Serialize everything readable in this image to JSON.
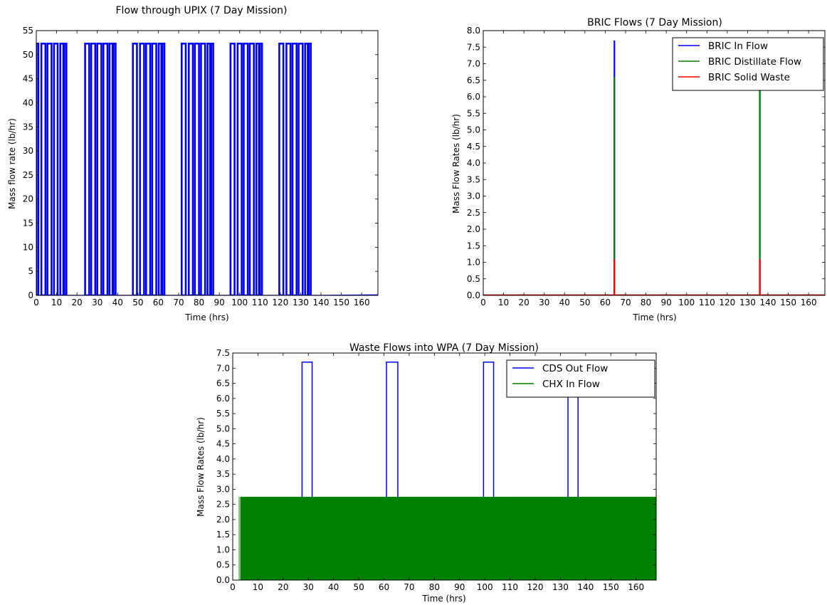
{
  "chart_data": [
    {
      "id": "upix",
      "type": "line",
      "title": "Flow through UPIX (7 Day Mission)",
      "xlabel": "Time (hrs)",
      "ylabel": "Mass flow rate (lb/hr)",
      "xlim": [
        0,
        168
      ],
      "ylim": [
        0,
        55
      ],
      "xticks": [
        0,
        10,
        20,
        30,
        40,
        50,
        60,
        70,
        80,
        90,
        100,
        110,
        120,
        130,
        140,
        150,
        160
      ],
      "yticks": [
        0,
        5,
        10,
        15,
        20,
        25,
        30,
        35,
        40,
        45,
        50,
        55
      ],
      "tick_format": "int",
      "grid": false,
      "legend": null,
      "series": [
        {
          "color": "#0000ff",
          "pulse_height": 52.3,
          "pulses": [
            [
              0,
              1
            ],
            [
              2.5,
              4.5
            ],
            [
              5.5,
              7.5
            ],
            [
              8.7,
              10.5
            ],
            [
              11.8,
              13.3
            ],
            [
              13.8,
              14.8
            ],
            [
              24,
              26
            ],
            [
              27,
              29
            ],
            [
              30,
              32
            ],
            [
              33,
              35
            ],
            [
              36,
              37.5
            ],
            [
              38,
              39
            ],
            [
              47.5,
              49.5
            ],
            [
              51,
              53
            ],
            [
              54,
              56
            ],
            [
              57,
              59
            ],
            [
              60.2,
              61.5
            ],
            [
              62,
              63
            ],
            [
              71.5,
              73.5
            ],
            [
              75,
              77
            ],
            [
              78,
              80
            ],
            [
              81,
              83
            ],
            [
              84.2,
              85.5
            ],
            [
              86,
              87
            ],
            [
              95.5,
              97.5
            ],
            [
              99,
              101
            ],
            [
              102,
              104
            ],
            [
              105,
              107
            ],
            [
              108.2,
              109.5
            ],
            [
              110,
              111
            ],
            [
              119.5,
              121.5
            ],
            [
              123,
              125
            ],
            [
              126,
              128
            ],
            [
              129,
              131
            ],
            [
              132.2,
              133.5
            ],
            [
              134,
              135
            ]
          ],
          "baseline": [
            [
              0,
              0
            ],
            [
              140,
              0
            ],
            [
              168,
              0.1
            ]
          ]
        }
      ]
    },
    {
      "id": "bric",
      "type": "line",
      "title": "BRIC Flows (7 Day Mission)",
      "xlabel": "Time (hrs)",
      "ylabel": "Mass Flow Rates (lb/hr)",
      "xlim": [
        0,
        168
      ],
      "ylim": [
        0,
        8.0
      ],
      "xticks": [
        0,
        10,
        20,
        30,
        40,
        50,
        60,
        70,
        80,
        90,
        100,
        110,
        120,
        130,
        140,
        150,
        160
      ],
      "yticks": [
        0,
        0.5,
        1.0,
        1.5,
        2.0,
        2.5,
        3.0,
        3.5,
        4.0,
        4.5,
        5.0,
        5.5,
        6.0,
        6.5,
        7.0,
        7.5,
        8.0
      ],
      "tick_format": "1dp",
      "grid": false,
      "legend": "top-right",
      "series": [
        {
          "name": "BRIC In Flow",
          "color": "#0000ff",
          "spikes": [
            [
              64.5,
              7.7
            ],
            [
              136,
              6.6
            ]
          ]
        },
        {
          "name": "BRIC Distillate Flow",
          "color": "#008000",
          "spikes": [
            [
              64.5,
              6.6
            ],
            [
              136,
              6.6
            ]
          ]
        },
        {
          "name": "BRIC Solid Waste",
          "color": "#ff0000",
          "spikes": [
            [
              64.5,
              1.1
            ],
            [
              136,
              1.1
            ]
          ]
        }
      ]
    },
    {
      "id": "wpa",
      "type": "line",
      "title": "Waste Flows into WPA (7 Day Mission)",
      "xlabel": "Time (hrs)",
      "ylabel": "Mass Flow Rates (lb/hr)",
      "xlim": [
        0,
        168
      ],
      "ylim": [
        0,
        7.5
      ],
      "xticks": [
        0,
        10,
        20,
        30,
        40,
        50,
        60,
        70,
        80,
        90,
        100,
        110,
        120,
        130,
        140,
        150,
        160
      ],
      "yticks": [
        0,
        0.5,
        1.0,
        1.5,
        2.0,
        2.5,
        3.0,
        3.5,
        4.0,
        4.5,
        5.0,
        5.5,
        6.0,
        6.5,
        7.0,
        7.5
      ],
      "tick_format": "1dp",
      "grid": false,
      "legend": "top-right",
      "series": [
        {
          "name": "CDS Out Flow",
          "color": "#0000ff",
          "base": 2.75,
          "pulse_height": 7.2,
          "pulses": [
            [
              27.5,
              31.5
            ],
            [
              61,
              65.5
            ],
            [
              99.5,
              103.5
            ],
            [
              133,
              137
            ]
          ]
        },
        {
          "name": "CHX In Flow",
          "color": "#008000",
          "fill_from": 3,
          "fill_to": 168,
          "level": 2.75
        }
      ]
    }
  ]
}
